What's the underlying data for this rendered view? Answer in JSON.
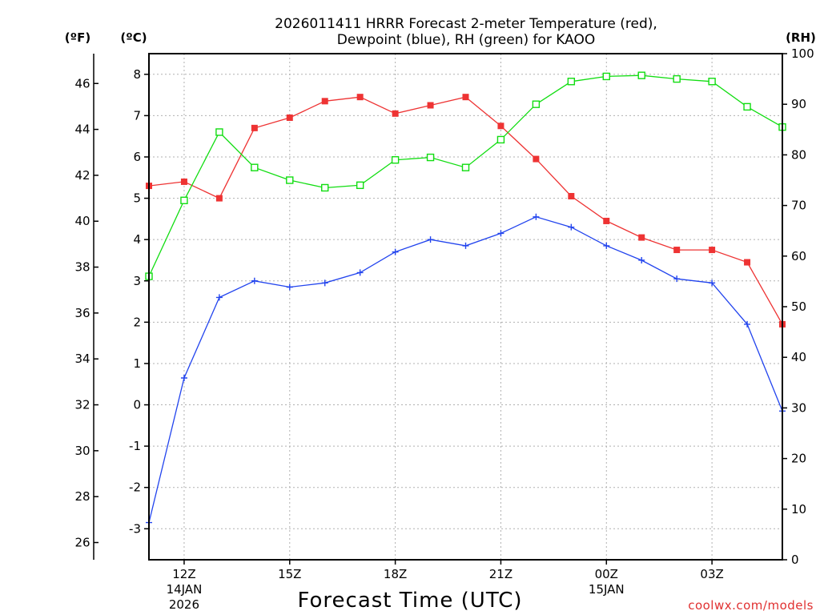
{
  "chart_data": {
    "type": "line",
    "title_line1": "2026011411 HRRR Forecast 2-meter Temperature (red),",
    "title_line2": "Dewpoint (blue), RH (green) for KAOO",
    "xlabel": "Forecast Time (UTC)",
    "credit": "coolwx.com/models",
    "units": {
      "fahrenheit": "(ºF)",
      "celsius": "(ºC)",
      "rh": "(RH)"
    },
    "x_hours": [
      11,
      12,
      13,
      14,
      15,
      16,
      17,
      18,
      19,
      20,
      21,
      22,
      23,
      24,
      25,
      26,
      27,
      28,
      29
    ],
    "xlim": [
      11,
      29
    ],
    "ylim_c": [
      -3.75,
      8.5
    ],
    "ylim_rh": [
      0,
      100
    ],
    "ylim_f": [
      25.25,
      47.3
    ],
    "x_ticks": [
      {
        "hour": 12,
        "line1": "12Z",
        "line2": "14JAN",
        "line3": "2026"
      },
      {
        "hour": 15,
        "line1": "15Z"
      },
      {
        "hour": 18,
        "line1": "18Z"
      },
      {
        "hour": 21,
        "line1": "21Z"
      },
      {
        "hour": 24,
        "line1": "00Z",
        "line2": "15JAN"
      },
      {
        "hour": 27,
        "line1": "03Z"
      }
    ],
    "y_ticks_c": [
      "-3",
      "-2",
      "-1",
      "0",
      "1",
      "2",
      "3",
      "4",
      "5",
      "6",
      "7",
      "8"
    ],
    "y_ticks_f": [
      "26",
      "28",
      "30",
      "32",
      "34",
      "36",
      "38",
      "40",
      "42",
      "44",
      "46"
    ],
    "y_ticks_rh": [
      "0",
      "10",
      "20",
      "30",
      "40",
      "50",
      "60",
      "70",
      "80",
      "90",
      "100"
    ],
    "series": [
      {
        "name": "Temperature",
        "color": "#ee3333",
        "marker": "filled-square",
        "axis": "celsius",
        "values": [
          5.3,
          5.4,
          5.0,
          6.7,
          6.95,
          7.35,
          7.45,
          7.05,
          7.25,
          7.45,
          6.75,
          5.95,
          5.05,
          4.45,
          4.05,
          3.75,
          3.75,
          3.45,
          1.95
        ]
      },
      {
        "name": "Dewpoint",
        "color": "#2244ee",
        "marker": "plus",
        "axis": "celsius",
        "values": [
          -2.85,
          0.65,
          2.6,
          3.0,
          2.85,
          2.95,
          3.2,
          3.7,
          4.0,
          3.85,
          4.15,
          4.55,
          4.3,
          3.85,
          3.5,
          3.05,
          2.95,
          1.95,
          -0.15
        ]
      },
      {
        "name": "RH",
        "color": "#11dd11",
        "marker": "open-square",
        "axis": "rh",
        "values": [
          56,
          71,
          84.5,
          77.5,
          75,
          73.5,
          74,
          79,
          79.5,
          77.5,
          83,
          90,
          94.5,
          95.5,
          95.7,
          95,
          94.5,
          89.5,
          85.5
        ]
      }
    ]
  }
}
